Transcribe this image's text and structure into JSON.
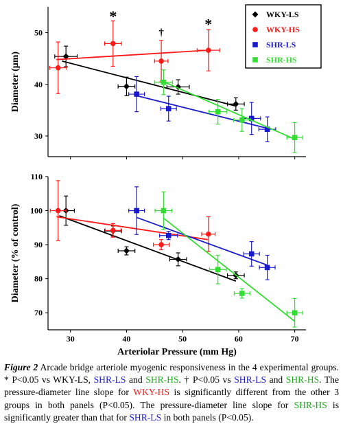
{
  "chart_data": [
    {
      "type": "scatter",
      "panel": "top",
      "ylabel": "Diameter (μm)",
      "xlabel": "",
      "xlim": [
        26,
        72
      ],
      "ylim": [
        26,
        55
      ],
      "yticks": [
        30,
        40,
        50
      ],
      "xticks": [],
      "legend": {
        "placement": "top-right",
        "entries": [
          "WKY-LS",
          "WKY-HS",
          "SHR-LS",
          "SHR-HS"
        ]
      },
      "series": [
        {
          "name": "WKY-LS",
          "color": "#000000",
          "marker": "diamond",
          "points": [
            {
              "x": 29.2,
              "y": 45.4,
              "xerr": 2.0,
              "yerr": 2.0
            },
            {
              "x": 40.0,
              "y": 39.6,
              "xerr": 1.5,
              "yerr": 1.8
            },
            {
              "x": 49.2,
              "y": 39.5,
              "xerr": 2.0,
              "yerr": 1.4
            },
            {
              "x": 59.5,
              "y": 36.2,
              "xerr": 1.5,
              "yerr": 1.2
            }
          ],
          "fit": [
            [
              28.5,
              44.5
            ],
            [
              59.5,
              35.8
            ]
          ]
        },
        {
          "name": "WKY-HS",
          "color": "#ff1a1a",
          "marker": "circle",
          "points": [
            {
              "x": 27.8,
              "y": 43.2,
              "xerr": 1.5,
              "yerr": 5.0
            },
            {
              "x": 37.6,
              "y": 47.9,
              "xerr": 1.5,
              "yerr": 4.4
            },
            {
              "x": 46.2,
              "y": 44.5,
              "xerr": 1.2,
              "yerr": 4.0
            },
            {
              "x": 54.6,
              "y": 46.6,
              "xerr": 2.0,
              "yerr": 4.0
            }
          ],
          "fit": [
            [
              27.5,
              44.8
            ],
            [
              54.5,
              46.6
            ]
          ]
        },
        {
          "name": "SHR-LS",
          "color": "#1a1acc",
          "marker": "square",
          "points": [
            {
              "x": 41.8,
              "y": 38.1,
              "xerr": 1.4,
              "yerr": 3.4
            },
            {
              "x": 47.5,
              "y": 35.3,
              "xerr": 1.4,
              "yerr": 2.4
            },
            {
              "x": 62.3,
              "y": 33.4,
              "xerr": 1.6,
              "yerr": 3.1
            },
            {
              "x": 65.1,
              "y": 31.3,
              "xerr": 1.5,
              "yerr": 2.4
            }
          ],
          "fit": [
            [
              41.8,
              37.8
            ],
            [
              65.1,
              31.5
            ]
          ]
        },
        {
          "name": "SHR-HS",
          "color": "#33dd33",
          "marker": "square",
          "points": [
            {
              "x": 46.6,
              "y": 40.4,
              "xerr": 1.6,
              "yerr": 2.4
            },
            {
              "x": 56.3,
              "y": 34.7,
              "xerr": 1.6,
              "yerr": 2.4
            },
            {
              "x": 60.6,
              "y": 33.1,
              "xerr": 1.5,
              "yerr": 2.2
            },
            {
              "x": 70.0,
              "y": 29.7,
              "xerr": 1.4,
              "yerr": 2.9
            }
          ],
          "fit": [
            [
              46.0,
              40.8
            ],
            [
              70.0,
              29.4
            ]
          ]
        }
      ],
      "annotations": [
        {
          "text": "*",
          "x": 37.6,
          "y": 53.0,
          "color": "#000000"
        },
        {
          "text": "†",
          "x": 46.2,
          "y": 50.2,
          "color": "#000000"
        },
        {
          "text": "*",
          "x": 54.6,
          "y": 51.5,
          "color": "#000000"
        }
      ]
    },
    {
      "type": "scatter",
      "panel": "bottom",
      "ylabel": "Diameter  (% of control)",
      "xlabel": "Arteriolar Pressure (mm Hg)",
      "xlim": [
        26,
        72
      ],
      "ylim": [
        65,
        110
      ],
      "yticks": [
        70,
        80,
        90,
        100,
        110
      ],
      "xticks": [
        30,
        40,
        50,
        60,
        70
      ],
      "series": [
        {
          "name": "WKY-LS",
          "color": "#000000",
          "marker": "diamond",
          "points": [
            {
              "x": 29.2,
              "y": 100.0,
              "xerr": 1.5,
              "yerr": 4.3
            },
            {
              "x": 37.6,
              "y": 94.0,
              "xerr": 1.5,
              "yerr": 1.5
            },
            {
              "x": 40.0,
              "y": 88.2,
              "xerr": 1.5,
              "yerr": 1.2
            },
            {
              "x": 49.2,
              "y": 85.7,
              "xerr": 1.5,
              "yerr": 1.9
            },
            {
              "x": 59.5,
              "y": 81.0,
              "xerr": 1.5,
              "yerr": 1.0
            }
          ],
          "fit": [
            [
              28.0,
              98.5
            ],
            [
              59.5,
              79.3
            ]
          ]
        },
        {
          "name": "WKY-HS",
          "color": "#ff1a1a",
          "marker": "circle",
          "points": [
            {
              "x": 27.8,
              "y": 100.0,
              "xerr": 1.4,
              "yerr": 8.8
            },
            {
              "x": 37.6,
              "y": 94.2,
              "xerr": 1.4,
              "yerr": 2.0
            },
            {
              "x": 46.2,
              "y": 90.0,
              "xerr": 1.4,
              "yerr": 1.5
            },
            {
              "x": 54.6,
              "y": 93.1,
              "xerr": 1.2,
              "yerr": 5.1
            }
          ],
          "fit": [
            [
              27.5,
              98.2
            ],
            [
              54.5,
              91.5
            ]
          ]
        },
        {
          "name": "SHR-LS",
          "color": "#1a1acc",
          "marker": "square",
          "points": [
            {
              "x": 41.8,
              "y": 100.0,
              "xerr": 1.4,
              "yerr": 7.0
            },
            {
              "x": 47.5,
              "y": 92.7,
              "xerr": 1.6,
              "yerr": 1.2
            },
            {
              "x": 62.3,
              "y": 87.3,
              "xerr": 1.4,
              "yerr": 3.6
            },
            {
              "x": 65.1,
              "y": 83.3,
              "xerr": 1.4,
              "yerr": 3.6
            }
          ],
          "fit": [
            [
              41.8,
              98.0
            ],
            [
              65.1,
              84.0
            ]
          ]
        },
        {
          "name": "SHR-HS",
          "color": "#33dd33",
          "marker": "square",
          "points": [
            {
              "x": 46.6,
              "y": 100.0,
              "xerr": 1.5,
              "yerr": 5.5
            },
            {
              "x": 56.3,
              "y": 82.7,
              "xerr": 1.5,
              "yerr": 4.2
            },
            {
              "x": 60.6,
              "y": 75.7,
              "xerr": 1.4,
              "yerr": 1.4
            },
            {
              "x": 70.0,
              "y": 70.0,
              "xerr": 1.4,
              "yerr": 4.2
            }
          ],
          "fit": [
            [
              46.6,
              97.8
            ],
            [
              70.0,
              67.5
            ]
          ]
        }
      ]
    }
  ],
  "caption": {
    "label": "Figure 2",
    "segments": [
      {
        "text": " Arcade bridge arteriole myogenic responsiveness in the 4 experimental groups.  * P<0.05 vs WKY-LS, ",
        "color": "#000000"
      },
      {
        "text": "SHR-LS",
        "color": "#1a1acc"
      },
      {
        "text": " and ",
        "color": "#000000"
      },
      {
        "text": "SHR-HS",
        "color": "#22aa22"
      },
      {
        "text": ".  † P<0.05 vs ",
        "color": "#000000"
      },
      {
        "text": "SHR-LS",
        "color": "#1a1acc"
      },
      {
        "text": " and ",
        "color": "#000000"
      },
      {
        "text": "SHR-HS",
        "color": "#22aa22"
      },
      {
        "text": ".  The pressure-diameter line slope for ",
        "color": "#000000"
      },
      {
        "text": "WKY-HS",
        "color": "#ff1a1a"
      },
      {
        "text": " is significantly different from the other 3 groups in both panels (P<0.05).  The pressure-diameter line slope for ",
        "color": "#000000"
      },
      {
        "text": "SHR-HS",
        "color": "#22aa22"
      },
      {
        "text": " is significantly greater than that for ",
        "color": "#000000"
      },
      {
        "text": "SHR-LS",
        "color": "#1a1acc"
      },
      {
        "text": " in both panels (P<0.05).",
        "color": "#000000"
      }
    ]
  }
}
